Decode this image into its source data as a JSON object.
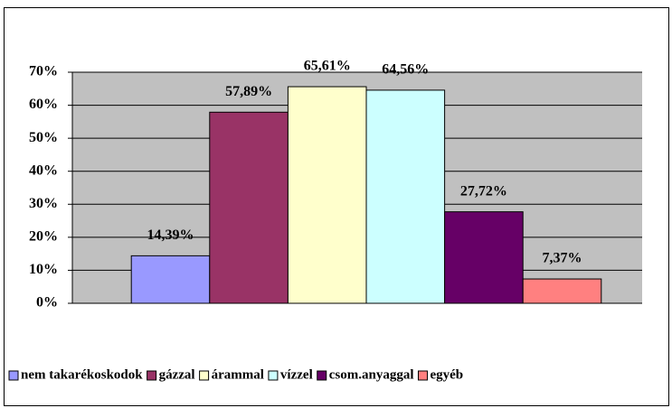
{
  "chart_data": {
    "type": "bar",
    "series": [
      {
        "name": "nem takarékoskodok",
        "color": "#9999ff",
        "values": [
          14.39
        ],
        "value_labels": [
          "14,39%"
        ]
      },
      {
        "name": "gázzal",
        "color": "#993366",
        "values": [
          57.89
        ],
        "value_labels": [
          "57,89%"
        ]
      },
      {
        "name": "árammal",
        "color": "#ffffcc",
        "values": [
          65.61
        ],
        "value_labels": [
          "65,61%"
        ]
      },
      {
        "name": "vízzel",
        "color": "#ccffff",
        "values": [
          64.56
        ],
        "value_labels": [
          "64,56%"
        ]
      },
      {
        "name": "csom.anyaggal",
        "color": "#660066",
        "values": [
          27.72
        ],
        "value_labels": [
          "27,72%"
        ]
      },
      {
        "name": "egyéb",
        "color": "#ff8080",
        "values": [
          7.37
        ],
        "value_labels": [
          "7,37%"
        ]
      }
    ],
    "ylim": [
      0,
      70
    ],
    "yticks": [
      {
        "value": 0,
        "label": "0%"
      },
      {
        "value": 10,
        "label": "10%"
      },
      {
        "value": 20,
        "label": "20%"
      },
      {
        "value": 30,
        "label": "30%"
      },
      {
        "value": 40,
        "label": "40%"
      },
      {
        "value": 50,
        "label": "50%"
      },
      {
        "value": 60,
        "label": "60%"
      },
      {
        "value": 70,
        "label": "70%"
      }
    ],
    "grid": true,
    "legend": "bottom",
    "plot_background": "#c0c0c0"
  }
}
